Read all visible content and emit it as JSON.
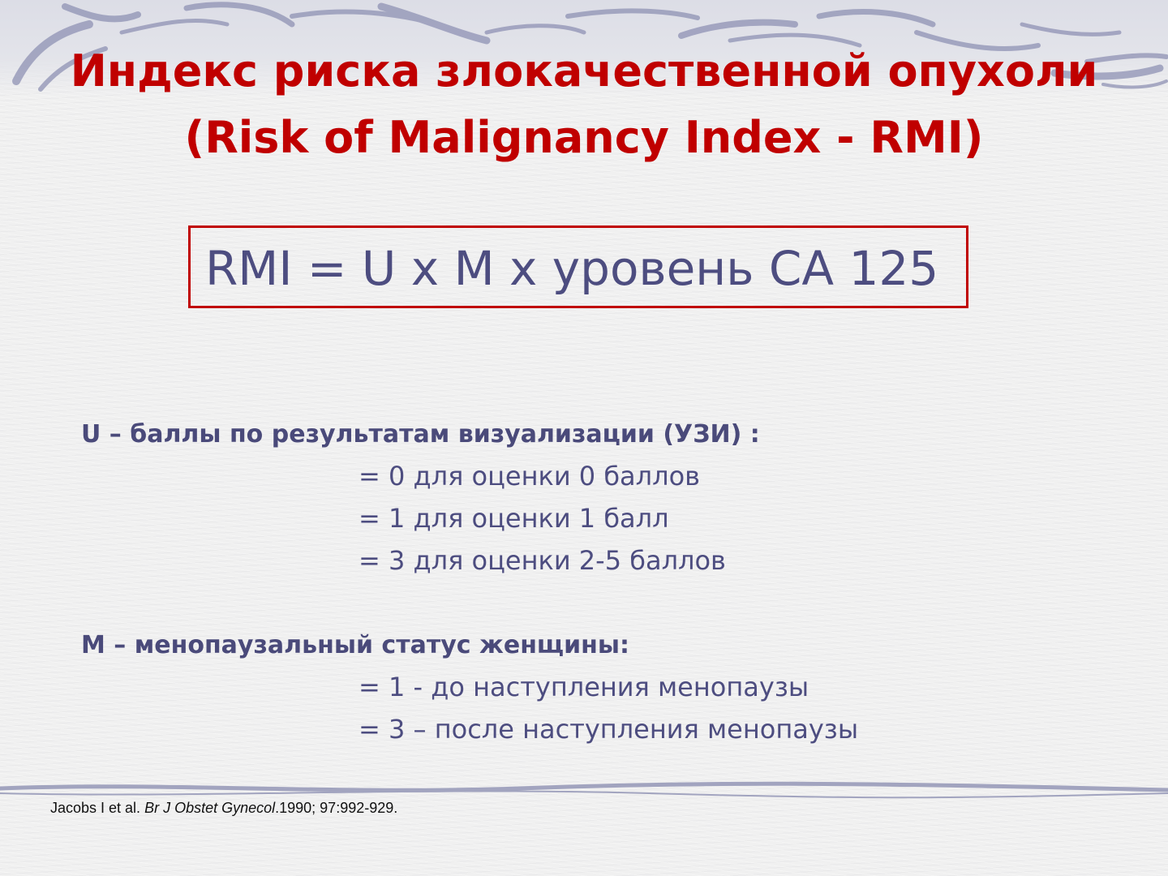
{
  "slide": {
    "title_line1": "Индекс риска злокачественной опухоли",
    "title_line2": "(Risk of Malignancy Index - RMI)",
    "formula": "RMI = U x M x уровень CA 125",
    "u_section": {
      "heading": "U – баллы по результатам визуализации (УЗИ) :",
      "items": [
        "= 0 для оценки 0 баллов",
        "= 1 для оценки 1 балл",
        "= 3 для оценки 2-5 баллов"
      ]
    },
    "m_section": {
      "heading": "M – менопаузальный статус женщины:",
      "items": [
        "= 1 - до наступления менопаузы",
        "= 3 – после наступления менопаузы"
      ]
    },
    "citation": {
      "authors": "Jacobs I et al. ",
      "journal": "Br J Obstet Gynecol",
      "details": ".1990; 97:992-929."
    }
  },
  "colors": {
    "title": "#c00000",
    "box_border": "#c00000",
    "body_text": "#4d4d80",
    "decoration": "#8f92b4"
  }
}
